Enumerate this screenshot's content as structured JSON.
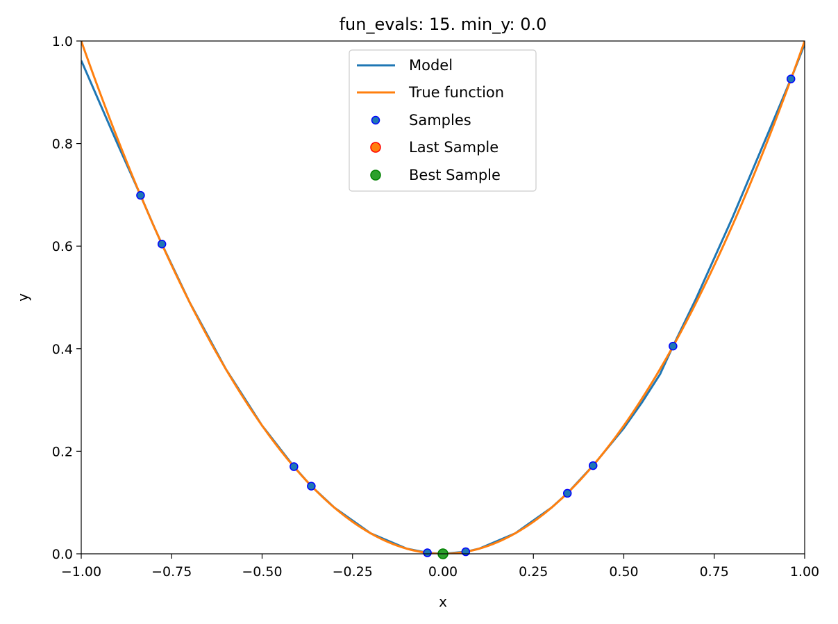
{
  "chart_data": {
    "type": "line",
    "title": "fun_evals: 15. min_y: 0.0",
    "xlabel": "x",
    "ylabel": "y",
    "xlim": [
      -1.0,
      1.0
    ],
    "ylim": [
      0.0,
      1.0
    ],
    "x_ticks": [
      "−1.00",
      "−0.75",
      "−0.50",
      "−0.25",
      "0.00",
      "0.25",
      "0.50",
      "0.75",
      "1.00"
    ],
    "y_ticks": [
      "0.0",
      "0.2",
      "0.4",
      "0.6",
      "0.8",
      "1.0"
    ],
    "grid": false,
    "legend_position": "top-center",
    "legend": [
      "Model",
      "True function",
      "Samples",
      "Last Sample",
      "Best Sample"
    ],
    "series": [
      {
        "name": "Model",
        "kind": "line",
        "color": "#1f77b4",
        "x": [
          -1.0,
          -0.9,
          -0.836,
          -0.8,
          -0.777,
          -0.7,
          -0.6,
          -0.5,
          -0.412,
          -0.364,
          -0.3,
          -0.2,
          -0.1,
          -0.043,
          0.0,
          0.063,
          0.1,
          0.2,
          0.3,
          0.344,
          0.415,
          0.5,
          0.55,
          0.6,
          0.636,
          0.7,
          0.8,
          0.9,
          0.962,
          1.0
        ],
        "y": [
          0.962,
          0.8,
          0.699,
          0.64,
          0.604,
          0.49,
          0.36,
          0.25,
          0.17,
          0.132,
          0.09,
          0.04,
          0.01,
          0.002,
          0.0,
          0.004,
          0.01,
          0.04,
          0.09,
          0.118,
          0.172,
          0.245,
          0.295,
          0.35,
          0.405,
          0.498,
          0.655,
          0.822,
          0.926,
          0.994
        ]
      },
      {
        "name": "True function",
        "kind": "line",
        "color": "#ff7f0e",
        "function": "x^2",
        "x_range": [
          -1.0,
          1.0
        ]
      },
      {
        "name": "Samples",
        "kind": "scatter",
        "color": "#1f77b4",
        "edge_color": "#0000ff",
        "x": [
          -0.836,
          -0.777,
          -0.412,
          -0.364,
          -0.043,
          0.063,
          0.344,
          0.415,
          0.636,
          0.962
        ],
        "y": [
          0.699,
          0.604,
          0.17,
          0.132,
          0.002,
          0.004,
          0.118,
          0.172,
          0.405,
          0.926
        ]
      },
      {
        "name": "Last Sample",
        "kind": "scatter",
        "color": "#ff7f0e",
        "edge_color": "#ff0000",
        "x": [],
        "y": []
      },
      {
        "name": "Best Sample",
        "kind": "scatter",
        "color": "#2ca02c",
        "edge_color": "#008000",
        "x": [
          0.0
        ],
        "y": [
          0.0
        ]
      }
    ]
  }
}
